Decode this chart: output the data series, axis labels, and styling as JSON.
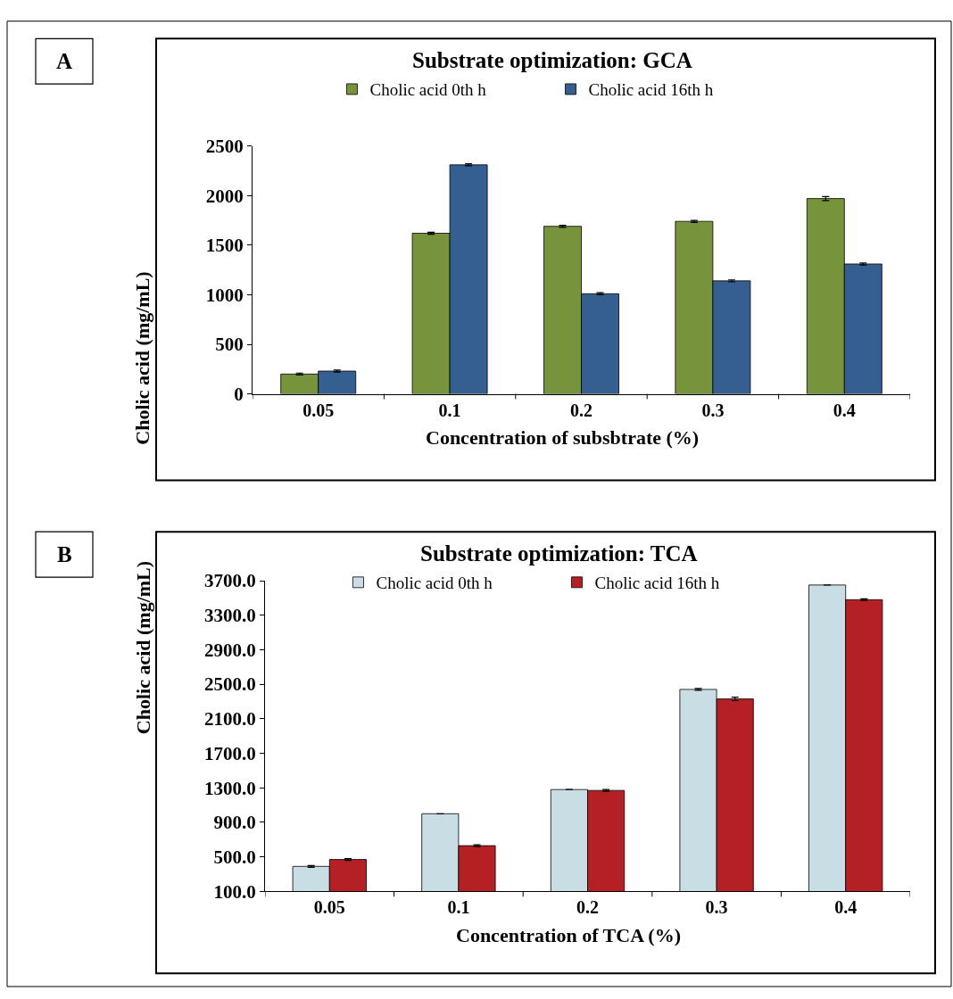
{
  "chart_data": [
    {
      "type": "bar",
      "title": "Substrate optimization: GCA",
      "xlabel": "Concentration of subsbtrate (%)",
      "ylabel": "Cholic acid (mg/mL)",
      "annotations": [
        "A"
      ],
      "categories": [
        "0.05",
        "0.1",
        "0.2",
        "0.3",
        "0.4"
      ],
      "series": [
        {
          "name": "Cholic acid 0th h",
          "color": "#77933c",
          "values": [
            200,
            1620,
            1690,
            1740,
            1970
          ],
          "errors": [
            10,
            10,
            10,
            10,
            20
          ]
        },
        {
          "name": "Cholic acid 16th h",
          "color": "#355e91",
          "values": [
            230,
            2310,
            1010,
            1140,
            1310
          ],
          "errors": [
            10,
            10,
            10,
            10,
            10
          ]
        }
      ],
      "ylim": [
        0,
        2500
      ],
      "yticks": [
        0,
        500,
        1000,
        1500,
        2000,
        2500
      ],
      "legend": "top"
    },
    {
      "type": "bar",
      "title": "Substrate optimization: TCA",
      "xlabel": "Concentration of TCA (%)",
      "ylabel": "Cholic acid (mg/mL)",
      "annotations": [
        "B"
      ],
      "categories": [
        "0.05",
        "0.1",
        "0.2",
        "0.3",
        "0.4"
      ],
      "series": [
        {
          "name": "Cholic acid 0th h",
          "color": "#c9dde5",
          "values": [
            390,
            1000,
            1280,
            2440,
            3650
          ],
          "errors": [
            10,
            null,
            null,
            10,
            null
          ]
        },
        {
          "name": "Cholic acid 16th h",
          "color": "#b52025",
          "values": [
            470,
            630,
            1270,
            2330,
            3480
          ],
          "errors": [
            10,
            10,
            10,
            20,
            10
          ]
        }
      ],
      "ylim": [
        100,
        3700
      ],
      "yticks": [
        {
          "value": 100,
          "label": "100.0"
        },
        {
          "value": 500,
          "label": "500.0"
        },
        {
          "value": 900,
          "label": "900.0"
        },
        {
          "value": 1300,
          "label": "1300.0"
        },
        {
          "value": 1700,
          "label": "1700.0"
        },
        {
          "value": 2100,
          "label": "2100.0"
        },
        {
          "value": 2500,
          "label": "2500.0"
        },
        {
          "value": 2900,
          "label": "2900.0"
        },
        {
          "value": 3300,
          "label": "3300.0"
        },
        {
          "value": 3700,
          "label": "3700.0"
        }
      ],
      "legend": "top"
    }
  ]
}
